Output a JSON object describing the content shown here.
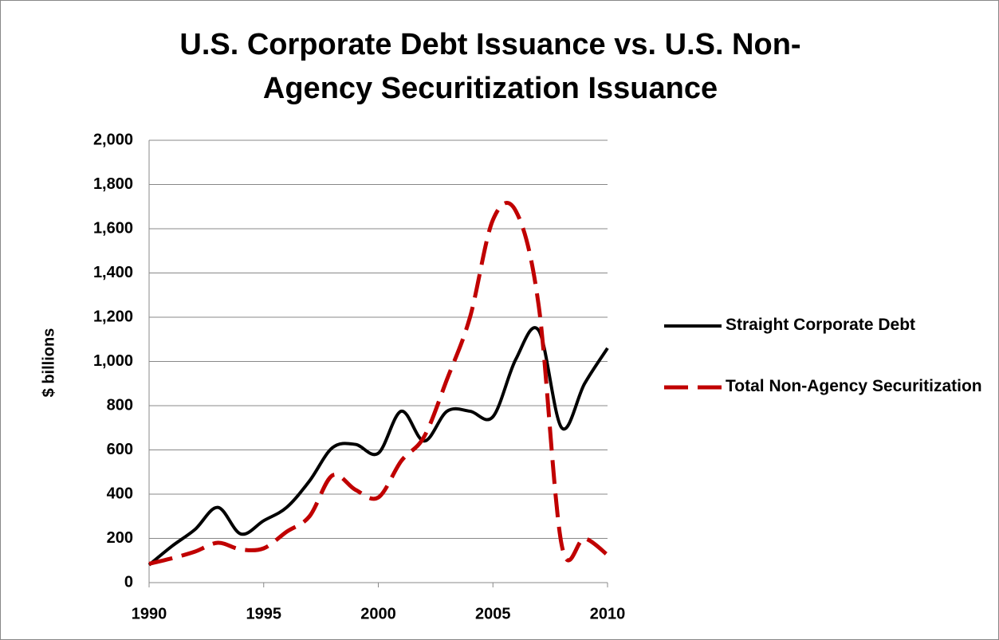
{
  "chart_data": {
    "type": "line",
    "title": [
      "U.S. Corporate Debt Issuance vs. U.S. Non-",
      "Agency Securitization Issuance"
    ],
    "ylabel": "$ billions",
    "x": [
      1990,
      1991,
      1992,
      1993,
      1994,
      1995,
      1996,
      1997,
      1998,
      1999,
      2000,
      2001,
      2002,
      2003,
      2004,
      2005,
      2006,
      2007,
      2008,
      2009,
      2010
    ],
    "series": [
      {
        "name": "Straight Corporate Debt",
        "color": "#000000",
        "dash": false,
        "values": [
          80,
          165,
          240,
          340,
          220,
          280,
          340,
          460,
          610,
          625,
          585,
          775,
          640,
          775,
          775,
          750,
          1010,
          1140,
          700,
          900,
          1060
        ]
      },
      {
        "name": "Total Non-Agency Securitization",
        "color": "#c00000",
        "dash": true,
        "values": [
          85,
          110,
          140,
          180,
          150,
          155,
          230,
          300,
          485,
          420,
          385,
          550,
          660,
          920,
          1200,
          1640,
          1680,
          1250,
          170,
          200,
          125
        ]
      }
    ],
    "xlim": [
      1990,
      2010
    ],
    "xticks": [
      1990,
      1995,
      2000,
      2005,
      2010
    ],
    "ylim": [
      0,
      2000
    ],
    "yticks": [
      0,
      {
        "value": 200,
        "label": "200"
      },
      400,
      600,
      800,
      {
        "value": 1000,
        "label": "1,000"
      },
      {
        "value": 1200,
        "label": "1,200"
      },
      {
        "value": 1400,
        "label": "1,400"
      },
      {
        "value": 1600,
        "label": "1,600"
      },
      {
        "value": 1800,
        "label": "1,800"
      },
      {
        "value": 2000,
        "label": "2,000"
      }
    ],
    "grid": true,
    "legend": "right"
  }
}
